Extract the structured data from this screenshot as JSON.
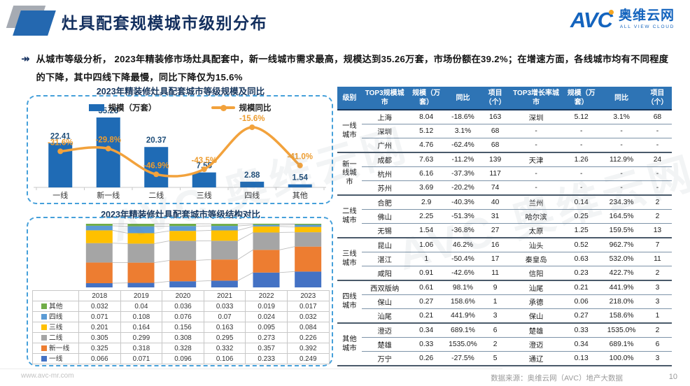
{
  "header": {
    "title": "灶具配套规模城市级别分布",
    "logo": {
      "short": "AVC",
      "cn": "奥维云网",
      "en": "ALL VIEW CLOUD"
    }
  },
  "summary": {
    "bullet_icon": "↠",
    "text": "从城市等级分析， 2023年精装修市场灶具配套中，新一线城市需求最高，规模达到35.26万套，市场份额在39.2%；在增速方面，各线城市均有不同程度的下降，其中四线下降最慢，同比下降仅为15.6%"
  },
  "colors": {
    "accent_blue": "#1F6BB5",
    "accent_orange": "#F2A23C",
    "table_header_blue": "#2E74B5",
    "title_navy": "#17375E",
    "logo_blue": "#1464BE",
    "dashed_border": "#46A0DA"
  },
  "chart_data": [
    {
      "type": "bar",
      "title": "2023年精装修灶具配套城市等级规模及同比",
      "categories": [
        "一线",
        "新一线",
        "二线",
        "三线",
        "四线",
        "其他"
      ],
      "series": [
        {
          "name": "规模（万套）",
          "type": "bar",
          "color": "#1F6BB5",
          "values": [
            22.41,
            35.26,
            20.37,
            7.55,
            2.88,
            1.54
          ]
        },
        {
          "name": "规模同比",
          "type": "line",
          "color": "#F2A23C",
          "unit": "%",
          "values": [
            -31.6,
            -29.8,
            -46.9,
            -43.5,
            -15.6,
            -41.0
          ]
        }
      ],
      "legend_position": "top",
      "grid": false
    },
    {
      "type": "bar",
      "subtype": "stacked-100",
      "title": "2023年精装修灶具配套城市等级结构对比",
      "categories": [
        "2018",
        "2019",
        "2020",
        "2021",
        "2022",
        "2023"
      ],
      "stack_order": "bottom-to-top",
      "series": [
        {
          "name": "一线",
          "color": "#4472C4",
          "values": [
            0.066,
            0.071,
            0.096,
            0.106,
            0.233,
            0.249
          ]
        },
        {
          "name": "新一线",
          "color": "#ED7D31",
          "values": [
            0.325,
            0.318,
            0.328,
            0.332,
            0.357,
            0.392
          ]
        },
        {
          "name": "二线",
          "color": "#A5A5A5",
          "values": [
            0.305,
            0.299,
            0.308,
            0.295,
            0.273,
            0.226
          ]
        },
        {
          "name": "三线",
          "color": "#FFC000",
          "values": [
            0.201,
            0.164,
            0.156,
            0.163,
            0.095,
            0.084
          ]
        },
        {
          "name": "四线",
          "color": "#5B9BD5",
          "values": [
            0.071,
            0.108,
            0.076,
            0.07,
            0.024,
            0.032
          ]
        },
        {
          "name": "其他",
          "color": "#70AD47",
          "values": [
            0.032,
            0.04,
            0.036,
            0.033,
            0.019,
            0.017
          ]
        }
      ],
      "ylim": [
        0,
        1
      ],
      "grid": false,
      "data_table_below": true
    }
  ],
  "city_table": {
    "headers": [
      "级别",
      "TOP3规模城市",
      "规模（万套）",
      "同比",
      "项目（个）",
      "TOP3增长率城市",
      "规模（万套）",
      "同比",
      "项目（个）"
    ],
    "groups": [
      {
        "label": "一线城市",
        "rows": [
          [
            "上海",
            "8.04",
            "-18.6%",
            "163",
            "深圳",
            "5.12",
            "3.1%",
            "68"
          ],
          [
            "深圳",
            "5.12",
            "3.1%",
            "68",
            "-",
            "-",
            "-",
            "-"
          ],
          [
            "广州",
            "4.76",
            "-62.4%",
            "68",
            "-",
            "-",
            "-",
            "-"
          ]
        ]
      },
      {
        "label": "新一线城市",
        "rows": [
          [
            "成都",
            "7.63",
            "-11.2%",
            "139",
            "天津",
            "1.26",
            "112.9%",
            "24"
          ],
          [
            "杭州",
            "6.16",
            "-37.3%",
            "117",
            "-",
            "-",
            "-",
            "-"
          ],
          [
            "苏州",
            "3.69",
            "-20.2%",
            "74",
            "-",
            "-",
            "-",
            "-"
          ]
        ]
      },
      {
        "label": "二线城市",
        "rows": [
          [
            "合肥",
            "2.9",
            "-40.3%",
            "40",
            "兰州",
            "0.14",
            "234.3%",
            "2"
          ],
          [
            "佛山",
            "2.25",
            "-51.3%",
            "31",
            "哈尔滨",
            "0.25",
            "164.5%",
            "2"
          ],
          [
            "无锡",
            "1.54",
            "-36.8%",
            "27",
            "太原",
            "1.25",
            "159.5%",
            "13"
          ]
        ]
      },
      {
        "label": "三线城市",
        "rows": [
          [
            "昆山",
            "1.06",
            "46.2%",
            "16",
            "汕头",
            "0.52",
            "962.7%",
            "7"
          ],
          [
            "湛江",
            "1",
            "-50.4%",
            "17",
            "秦皇岛",
            "0.63",
            "532.0%",
            "11"
          ],
          [
            "咸阳",
            "0.91",
            "-42.6%",
            "11",
            "信阳",
            "0.23",
            "422.7%",
            "2"
          ]
        ]
      },
      {
        "label": "四线城市",
        "rows": [
          [
            "西双版纳",
            "0.61",
            "98.1%",
            "9",
            "汕尾",
            "0.21",
            "441.9%",
            "3"
          ],
          [
            "保山",
            "0.27",
            "158.6%",
            "1",
            "承德",
            "0.06",
            "218.0%",
            "3"
          ],
          [
            "汕尾",
            "0.21",
            "441.9%",
            "3",
            "保山",
            "0.27",
            "158.6%",
            "1"
          ]
        ]
      },
      {
        "label": "其他城市",
        "rows": [
          [
            "澄迈",
            "0.34",
            "689.1%",
            "6",
            "楚雄",
            "0.33",
            "1535.0%",
            "2"
          ],
          [
            "楚雄",
            "0.33",
            "1535.0%",
            "2",
            "澄迈",
            "0.34",
            "689.1%",
            "6"
          ],
          [
            "万宁",
            "0.26",
            "-27.5%",
            "5",
            "通辽",
            "0.13",
            "100.0%",
            "3"
          ]
        ]
      }
    ]
  },
  "watermark": {
    "text": "AVC 奥维云网"
  },
  "footer": {
    "url": "www.avc-mr.com",
    "source": "数据来源：奥维云网（AVC）地产大数据",
    "page": "10"
  }
}
